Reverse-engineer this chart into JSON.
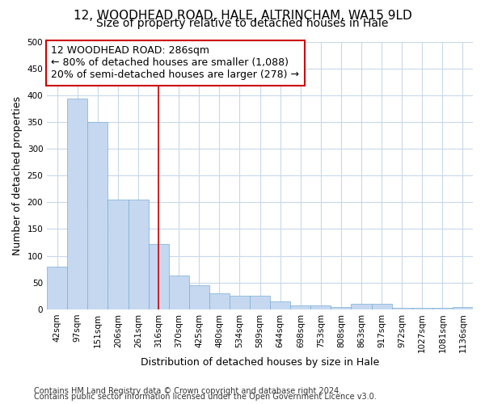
{
  "title1": "12, WOODHEAD ROAD, HALE, ALTRINCHAM, WA15 9LD",
  "title2": "Size of property relative to detached houses in Hale",
  "xlabel": "Distribution of detached houses by size in Hale",
  "ylabel": "Number of detached properties",
  "categories": [
    "42sqm",
    "97sqm",
    "151sqm",
    "206sqm",
    "261sqm",
    "316sqm",
    "370sqm",
    "425sqm",
    "480sqm",
    "534sqm",
    "589sqm",
    "644sqm",
    "698sqm",
    "753sqm",
    "808sqm",
    "863sqm",
    "917sqm",
    "972sqm",
    "1027sqm",
    "1081sqm",
    "1136sqm"
  ],
  "values": [
    80,
    393,
    350,
    205,
    205,
    122,
    63,
    45,
    30,
    25,
    25,
    15,
    8,
    8,
    5,
    10,
    10,
    3,
    3,
    3,
    4
  ],
  "bar_color": "#c5d8f0",
  "bar_edge_color": "#7aadd4",
  "vline_index": 5,
  "vline_color": "#cc0000",
  "annotation_title": "12 WOODHEAD ROAD: 286sqm",
  "annotation_line1": "← 80% of detached houses are smaller (1,088)",
  "annotation_line2": "20% of semi-detached houses are larger (278) →",
  "annotation_box_facecolor": "#ffffff",
  "annotation_box_edgecolor": "#cc0000",
  "ylim": [
    0,
    500
  ],
  "yticks": [
    0,
    50,
    100,
    150,
    200,
    250,
    300,
    350,
    400,
    450,
    500
  ],
  "footer1": "Contains HM Land Registry data © Crown copyright and database right 2024.",
  "footer2": "Contains public sector information licensed under the Open Government Licence v3.0.",
  "bg_color": "#ffffff",
  "plot_bg_color": "#ffffff",
  "grid_color": "#c8d8ec",
  "title1_fontsize": 11,
  "title2_fontsize": 10,
  "axis_label_fontsize": 9,
  "tick_fontsize": 7.5,
  "annotation_fontsize": 9,
  "footer_fontsize": 7
}
